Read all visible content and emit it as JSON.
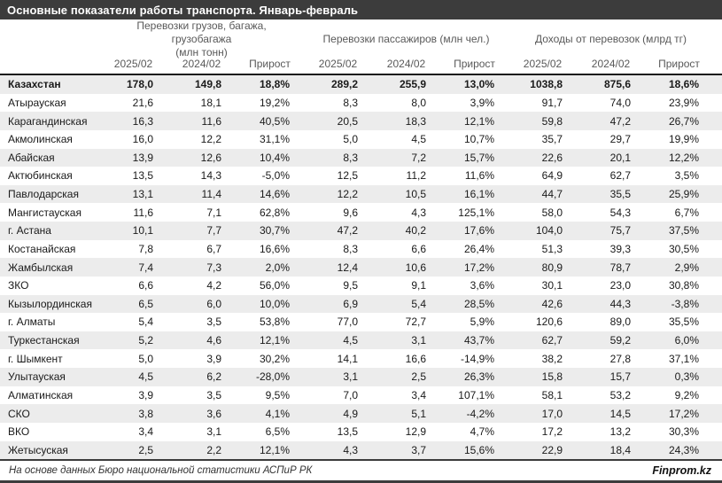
{
  "title": "Основные показатели работы транспорта. Январь-февраль",
  "chart_data": {
    "type": "table",
    "title": "Основные показатели работы транспорта. Январь-февраль",
    "column_groups": [
      "Перевозки грузов, багажа, грузобагажа\n(млн тонн)",
      "Перевозки пассажиров (млн чел.)",
      "Доходы от перевозок (млрд тг)"
    ],
    "sub_headers": [
      "2025/02",
      "2024/02",
      "Прирост"
    ],
    "rows": [
      {
        "region": "Казахстан",
        "bold": true,
        "values": [
          "178,0",
          "149,8",
          "18,8%",
          "289,2",
          "255,9",
          "13,0%",
          "1038,8",
          "875,6",
          "18,6%"
        ]
      },
      {
        "region": "Атырауская",
        "values": [
          "21,6",
          "18,1",
          "19,2%",
          "8,3",
          "8,0",
          "3,9%",
          "91,7",
          "74,0",
          "23,9%"
        ]
      },
      {
        "region": "Карагандинская",
        "values": [
          "16,3",
          "11,6",
          "40,5%",
          "20,5",
          "18,3",
          "12,1%",
          "59,8",
          "47,2",
          "26,7%"
        ]
      },
      {
        "region": "Акмолинская",
        "values": [
          "16,0",
          "12,2",
          "31,1%",
          "5,0",
          "4,5",
          "10,7%",
          "35,7",
          "29,7",
          "19,9%"
        ]
      },
      {
        "region": "Абайская",
        "values": [
          "13,9",
          "12,6",
          "10,4%",
          "8,3",
          "7,2",
          "15,7%",
          "22,6",
          "20,1",
          "12,2%"
        ]
      },
      {
        "region": "Актюбинская",
        "values": [
          "13,5",
          "14,3",
          "-5,0%",
          "12,5",
          "11,2",
          "11,6%",
          "64,9",
          "62,7",
          "3,5%"
        ]
      },
      {
        "region": "Павлодарская",
        "values": [
          "13,1",
          "11,4",
          "14,6%",
          "12,2",
          "10,5",
          "16,1%",
          "44,7",
          "35,5",
          "25,9%"
        ]
      },
      {
        "region": "Мангистауская",
        "values": [
          "11,6",
          "7,1",
          "62,8%",
          "9,6",
          "4,3",
          "125,1%",
          "58,0",
          "54,3",
          "6,7%"
        ]
      },
      {
        "region": "г. Астана",
        "values": [
          "10,1",
          "7,7",
          "30,7%",
          "47,2",
          "40,2",
          "17,6%",
          "104,0",
          "75,7",
          "37,5%"
        ]
      },
      {
        "region": "Костанайская",
        "values": [
          "7,8",
          "6,7",
          "16,6%",
          "8,3",
          "6,6",
          "26,4%",
          "51,3",
          "39,3",
          "30,5%"
        ]
      },
      {
        "region": "Жамбылская",
        "values": [
          "7,4",
          "7,3",
          "2,0%",
          "12,4",
          "10,6",
          "17,2%",
          "80,9",
          "78,7",
          "2,9%"
        ]
      },
      {
        "region": "ЗКО",
        "values": [
          "6,6",
          "4,2",
          "56,0%",
          "9,5",
          "9,1",
          "3,6%",
          "30,1",
          "23,0",
          "30,8%"
        ]
      },
      {
        "region": "Кызылординская",
        "values": [
          "6,5",
          "6,0",
          "10,0%",
          "6,9",
          "5,4",
          "28,5%",
          "42,6",
          "44,3",
          "-3,8%"
        ]
      },
      {
        "region": "г. Алматы",
        "values": [
          "5,4",
          "3,5",
          "53,8%",
          "77,0",
          "72,7",
          "5,9%",
          "120,6",
          "89,0",
          "35,5%"
        ]
      },
      {
        "region": "Туркестанская",
        "values": [
          "5,2",
          "4,6",
          "12,1%",
          "4,5",
          "3,1",
          "43,7%",
          "62,7",
          "59,2",
          "6,0%"
        ]
      },
      {
        "region": "г. Шымкент",
        "values": [
          "5,0",
          "3,9",
          "30,2%",
          "14,1",
          "16,6",
          "-14,9%",
          "38,2",
          "27,8",
          "37,1%"
        ]
      },
      {
        "region": "Улытауская",
        "values": [
          "4,5",
          "6,2",
          "-28,0%",
          "3,1",
          "2,5",
          "26,3%",
          "15,8",
          "15,7",
          "0,3%"
        ]
      },
      {
        "region": "Алматинская",
        "values": [
          "3,9",
          "3,5",
          "9,5%",
          "7,0",
          "3,4",
          "107,1%",
          "58,1",
          "53,2",
          "9,2%"
        ]
      },
      {
        "region": "СКО",
        "values": [
          "3,8",
          "3,6",
          "4,1%",
          "4,9",
          "5,1",
          "-4,2%",
          "17,0",
          "14,5",
          "17,2%"
        ]
      },
      {
        "region": "ВКО",
        "values": [
          "3,4",
          "3,1",
          "6,5%",
          "13,5",
          "12,9",
          "4,7%",
          "17,2",
          "13,2",
          "30,3%"
        ]
      },
      {
        "region": "Жетысуская",
        "values": [
          "2,5",
          "2,2",
          "12,1%",
          "4,3",
          "3,7",
          "15,6%",
          "22,9",
          "18,4",
          "24,3%"
        ]
      }
    ]
  },
  "footer": {
    "source_note": "На основе данных Бюро национальной статистики АСПиР РК",
    "brand": "Finprom.kz"
  },
  "colors": {
    "title_bar_bg": "#3c3c3c",
    "title_text": "#ffffff",
    "header_text": "#595959",
    "row_stripe": "#ececec",
    "rule": "#1a1a1a"
  }
}
